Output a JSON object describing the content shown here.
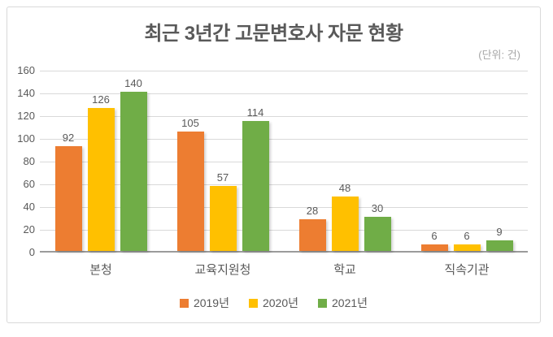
{
  "title": "최근 3년간 고문변호사 자문 현황",
  "unit_label": "(단위: 건)",
  "chart_data": {
    "type": "bar",
    "title": "최근 3년간 고문변호사 자문 현황",
    "subtitle": "(단위: 건)",
    "categories": [
      "본청",
      "교육지원청",
      "학교",
      "직속기관"
    ],
    "series": [
      {
        "name": "2019년",
        "color": "#ED7D31",
        "values": [
          92,
          105,
          28,
          6
        ]
      },
      {
        "name": "2020년",
        "color": "#FFC000",
        "values": [
          126,
          57,
          48,
          6
        ]
      },
      {
        "name": "2021년",
        "color": "#70AD47",
        "values": [
          140,
          114,
          30,
          9
        ]
      }
    ],
    "xlabel": "",
    "ylabel": "",
    "ylim": [
      0,
      160
    ],
    "yticks": [
      0,
      20,
      40,
      60,
      80,
      100,
      120,
      140,
      160
    ],
    "grid": true,
    "data_labels": true,
    "legend_position": "bottom"
  },
  "colors": {
    "series_2019": "#ED7D31",
    "series_2020": "#FFC000",
    "series_2021": "#70AD47",
    "gridline": "#D9D9D9",
    "axis_line": "#9B9B9B",
    "text": "#595959",
    "unit_text": "#A6A6A6",
    "frame_border": "#D9D9D9",
    "background": "#FFFFFF"
  }
}
